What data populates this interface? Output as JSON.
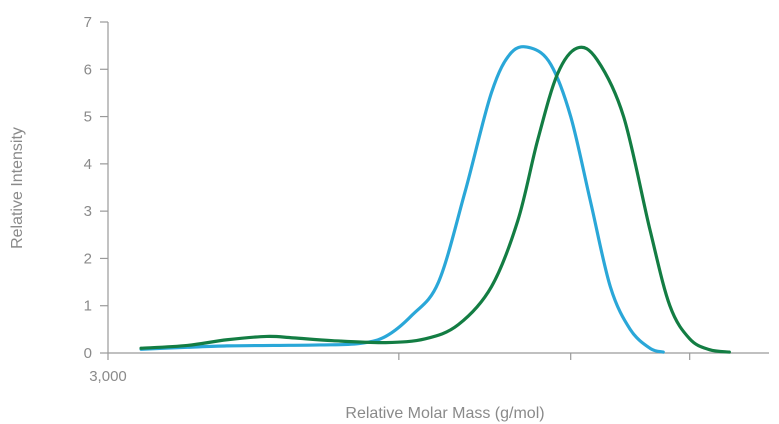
{
  "chart_data": {
    "type": "line",
    "title": "",
    "xlabel": "Relative Molar Mass (g/mol)",
    "ylabel": "Relative Intensity",
    "ylim": [
      0,
      7
    ],
    "y_ticks": [
      0,
      1,
      2,
      3,
      4,
      5,
      6,
      7
    ],
    "x_tick_labels": [
      "3,000",
      "",
      "",
      ""
    ],
    "grid": false,
    "legend": "none",
    "series": [
      {
        "color": "#2aa7d8",
        "points": [
          [
            0.05,
            0.08
          ],
          [
            0.12,
            0.12
          ],
          [
            0.18,
            0.15
          ],
          [
            0.25,
            0.16
          ],
          [
            0.32,
            0.17
          ],
          [
            0.38,
            0.2
          ],
          [
            0.42,
            0.35
          ],
          [
            0.46,
            0.8
          ],
          [
            0.5,
            1.5
          ],
          [
            0.54,
            3.4
          ],
          [
            0.58,
            5.5
          ],
          [
            0.61,
            6.35
          ],
          [
            0.64,
            6.45
          ],
          [
            0.67,
            6.1
          ],
          [
            0.7,
            5.0
          ],
          [
            0.73,
            3.2
          ],
          [
            0.76,
            1.4
          ],
          [
            0.79,
            0.5
          ],
          [
            0.82,
            0.1
          ],
          [
            0.84,
            0.02
          ]
        ]
      },
      {
        "color": "#137d43",
        "points": [
          [
            0.05,
            0.1
          ],
          [
            0.12,
            0.16
          ],
          [
            0.18,
            0.28
          ],
          [
            0.24,
            0.35
          ],
          [
            0.28,
            0.32
          ],
          [
            0.34,
            0.26
          ],
          [
            0.42,
            0.22
          ],
          [
            0.48,
            0.3
          ],
          [
            0.53,
            0.6
          ],
          [
            0.58,
            1.4
          ],
          [
            0.62,
            2.8
          ],
          [
            0.65,
            4.5
          ],
          [
            0.68,
            5.9
          ],
          [
            0.71,
            6.45
          ],
          [
            0.74,
            6.2
          ],
          [
            0.78,
            5.0
          ],
          [
            0.82,
            2.6
          ],
          [
            0.85,
            1.0
          ],
          [
            0.88,
            0.3
          ],
          [
            0.91,
            0.07
          ],
          [
            0.94,
            0.02
          ]
        ]
      }
    ]
  }
}
